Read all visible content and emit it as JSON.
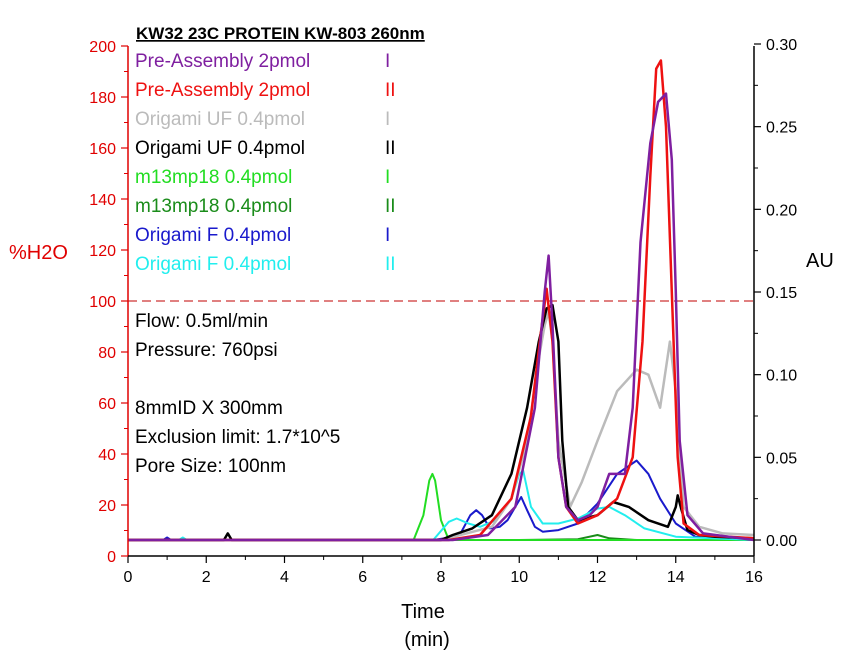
{
  "chart_data": {
    "type": "line",
    "title": "KW32 23C PROTEIN KW-803 260nm",
    "xlabel": "Time",
    "xlabel_unit": "(min)",
    "ylabel_left": "%H2O",
    "ylabel_right": "AU",
    "xlim": [
      0,
      16
    ],
    "ylim_left": [
      0,
      200
    ],
    "ylim_right": [
      0,
      0.3
    ],
    "x_ticks": [
      "0",
      "2",
      "4",
      "6",
      "8",
      "10",
      "12",
      "14",
      "16"
    ],
    "y_left_ticks": [
      "0",
      "20",
      "40",
      "60",
      "80",
      "100",
      "120",
      "140",
      "160",
      "180",
      "200"
    ],
    "y_right_ticks": [
      "0.00",
      "0.05",
      "0.10",
      "0.15",
      "0.20",
      "0.25",
      "0.30"
    ],
    "reference_line": {
      "axis": "left",
      "value": 100,
      "style": "dashed",
      "color": "#c00000"
    },
    "legend": [
      {
        "label": "Pre-Assembly 2pmol",
        "run": "I",
        "color": "#7f1fa0"
      },
      {
        "label": "Pre-Assembly 2pmol",
        "run": "II",
        "color": "#ee1111"
      },
      {
        "label": "Origami UF 0.4pmol",
        "run": "I",
        "color": "#bbbbbb"
      },
      {
        "label": "Origami UF 0.4pmol",
        "run": "II",
        "color": "#000000"
      },
      {
        "label": "m13mp18 0.4pmol",
        "run": "I",
        "color": "#22dd22"
      },
      {
        "label": "m13mp18 0.4pmol",
        "run": "II",
        "color": "#1a8c1a"
      },
      {
        "label": "Origami F 0.4pmol",
        "run": "I",
        "color": "#1a1acc"
      },
      {
        "label": "Origami F 0.4pmol",
        "run": "II",
        "color": "#22eeee"
      }
    ],
    "annotations": [
      "Flow: 0.5ml/min",
      "Pressure: 760psi",
      "",
      "8mmID X 300mm",
      "Exclusion limit: 1.7*10^5",
      "Pore Size: 100nm"
    ],
    "series": [
      {
        "color": "#1a8c1a",
        "width": 2,
        "x": [
          0,
          6,
          7.5,
          10,
          11.5,
          12.0,
          12.3,
          13,
          16
        ],
        "y": [
          0.0,
          0.0,
          0.0,
          0.0,
          0.0005,
          0.003,
          0.001,
          0.0,
          0.0
        ]
      },
      {
        "color": "#22dd22",
        "width": 2,
        "x": [
          0,
          7.3,
          7.55,
          7.7,
          7.78,
          7.85,
          8.0,
          8.2,
          16
        ],
        "y": [
          0.0,
          0.0,
          0.015,
          0.036,
          0.04,
          0.036,
          0.012,
          0.0,
          0.0
        ]
      },
      {
        "color": "#1a1acc",
        "width": 2,
        "x": [
          0,
          0.9,
          1.0,
          1.1,
          7.8,
          8.1,
          8.5,
          8.75,
          8.9,
          9.05,
          9.25,
          9.5,
          9.7,
          9.9,
          10.05,
          10.2,
          10.4,
          10.6,
          11.0,
          11.5,
          12.0,
          12.5,
          13.0,
          13.3,
          13.6,
          14.0,
          14.5,
          16
        ],
        "y": [
          0.0,
          0.0,
          0.0015,
          0.0,
          0.0,
          0.001,
          0.004,
          0.015,
          0.018,
          0.015,
          0.007,
          0.008,
          0.012,
          0.02,
          0.026,
          0.018,
          0.008,
          0.005,
          0.006,
          0.01,
          0.022,
          0.04,
          0.048,
          0.04,
          0.025,
          0.01,
          0.002,
          0.0
        ]
      },
      {
        "color": "#22eeee",
        "width": 2,
        "x": [
          0,
          1.3,
          1.4,
          1.5,
          7.8,
          8.2,
          8.4,
          8.7,
          9.0,
          9.4,
          9.8,
          10.0,
          10.1,
          10.3,
          10.6,
          11.0,
          11.5,
          12.0,
          12.3,
          12.7,
          13.2,
          14.0,
          16
        ],
        "y": [
          0.0,
          0.0,
          0.0015,
          0.0,
          0.0,
          0.011,
          0.013,
          0.01,
          0.008,
          0.012,
          0.025,
          0.04,
          0.042,
          0.02,
          0.01,
          0.01,
          0.013,
          0.019,
          0.02,
          0.015,
          0.007,
          0.002,
          0.0
        ]
      },
      {
        "color": "#bbbbbb",
        "width": 2.5,
        "x": [
          0,
          8,
          9.3,
          9.8,
          10.2,
          10.5,
          10.65,
          10.75,
          10.85,
          11.0,
          11.3,
          11.6,
          12.0,
          12.5,
          13.0,
          13.3,
          13.6,
          13.85,
          14.0,
          14.2,
          14.6,
          15.2,
          16
        ],
        "y": [
          0.0,
          0.0,
          0.008,
          0.025,
          0.06,
          0.11,
          0.13,
          0.138,
          0.12,
          0.06,
          0.02,
          0.035,
          0.06,
          0.09,
          0.103,
          0.1,
          0.08,
          0.12,
          0.09,
          0.02,
          0.008,
          0.004,
          0.003
        ]
      },
      {
        "color": "#000000",
        "width": 2.5,
        "x": [
          0,
          2.45,
          2.55,
          2.65,
          8.0,
          8.3,
          8.8,
          9.3,
          9.8,
          10.2,
          10.5,
          10.7,
          10.85,
          11.0,
          11.1,
          11.25,
          11.5,
          12.0,
          12.4,
          12.8,
          13.3,
          13.8,
          14.0,
          14.05,
          14.15,
          14.3,
          14.6,
          15.0,
          16
        ],
        "y": [
          0.0,
          0.0,
          0.004,
          0.0,
          0.0,
          0.003,
          0.007,
          0.015,
          0.04,
          0.08,
          0.12,
          0.14,
          0.142,
          0.12,
          0.06,
          0.02,
          0.012,
          0.015,
          0.023,
          0.02,
          0.012,
          0.008,
          0.02,
          0.027,
          0.018,
          0.006,
          0.003,
          0.002,
          0.001
        ]
      },
      {
        "color": "#ee1111",
        "width": 2.5,
        "x": [
          0,
          8.2,
          9.0,
          9.8,
          10.3,
          10.55,
          10.7,
          10.85,
          11.0,
          11.2,
          11.5,
          12.0,
          12.5,
          12.9,
          13.15,
          13.35,
          13.5,
          13.62,
          13.75,
          13.9,
          14.05,
          14.2,
          14.6,
          16
        ],
        "y": [
          0.0,
          0.0,
          0.003,
          0.025,
          0.075,
          0.125,
          0.152,
          0.12,
          0.05,
          0.02,
          0.01,
          0.015,
          0.025,
          0.05,
          0.12,
          0.22,
          0.285,
          0.29,
          0.25,
          0.15,
          0.05,
          0.01,
          0.003,
          0.001
        ]
      },
      {
        "color": "#7f1fa0",
        "width": 2.5,
        "x": [
          0,
          8.3,
          9.2,
          9.9,
          10.4,
          10.65,
          10.75,
          10.85,
          11.0,
          11.2,
          11.5,
          11.8,
          12.0,
          12.3,
          12.7,
          12.9,
          13.1,
          13.35,
          13.55,
          13.75,
          13.9,
          14.0,
          14.1,
          14.3,
          14.7,
          16
        ],
        "y": [
          0.0,
          0.0,
          0.003,
          0.02,
          0.08,
          0.15,
          0.172,
          0.13,
          0.05,
          0.02,
          0.012,
          0.015,
          0.02,
          0.04,
          0.04,
          0.08,
          0.18,
          0.24,
          0.265,
          0.27,
          0.23,
          0.15,
          0.06,
          0.015,
          0.004,
          0.0
        ]
      }
    ]
  }
}
